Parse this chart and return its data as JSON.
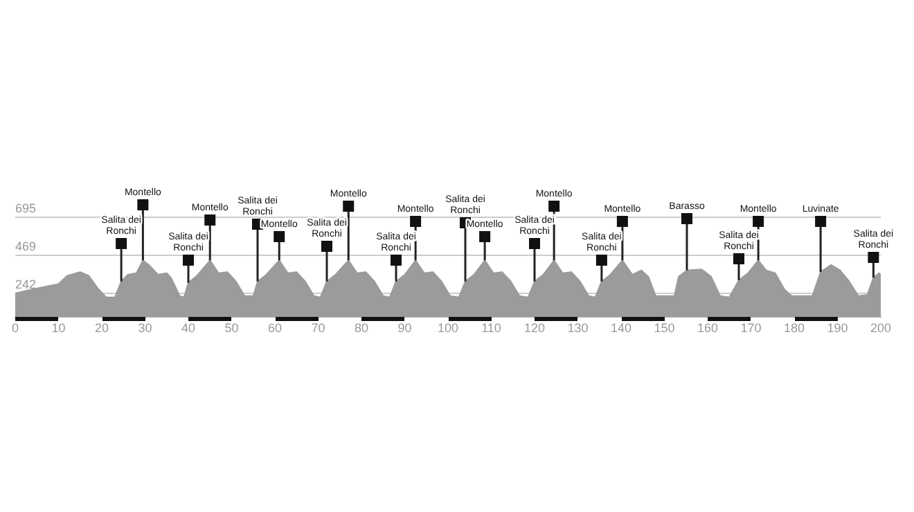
{
  "chart_data": {
    "type": "area",
    "color": "#9b9b9b",
    "x": [
      0,
      3,
      7,
      10,
      12,
      15,
      17,
      19,
      21,
      23,
      24.5,
      26,
      28,
      29.5,
      31,
      33,
      35,
      36,
      38,
      39,
      40,
      42,
      45,
      47,
      49,
      51,
      53,
      55,
      56,
      58,
      61,
      63,
      65,
      67,
      69,
      70.5,
      72,
      74,
      77,
      79,
      81,
      83,
      85,
      86.5,
      88,
      90,
      92.5,
      94.5,
      96.5,
      98.5,
      100.5,
      102.5,
      104,
      106,
      108.5,
      110.5,
      112.5,
      114.5,
      116.5,
      118.5,
      120,
      122,
      124.5,
      126.5,
      128.5,
      130.5,
      132.5,
      134,
      135.5,
      137.5,
      140.3,
      142.6,
      144.7,
      146.3,
      148,
      152.3,
      153.3,
      155.2,
      158.6,
      160.8,
      162.9,
      165,
      167.2,
      169.3,
      171.7,
      173.5,
      175.6,
      177.8,
      179.4,
      184.2,
      186.1,
      188.5,
      190.6,
      192.7,
      194.8,
      196.9,
      198.3,
      199.6,
      200
    ],
    "values": [
      242,
      260,
      282,
      297,
      347,
      369,
      347,
      274,
      218,
      218,
      313,
      353,
      362,
      438,
      408,
      353,
      362,
      335,
      226,
      218,
      305,
      347,
      438,
      362,
      369,
      313,
      226,
      226,
      313,
      353,
      438,
      362,
      369,
      313,
      226,
      218,
      313,
      353,
      438,
      362,
      369,
      313,
      226,
      218,
      313,
      353,
      438,
      362,
      369,
      313,
      226,
      218,
      313,
      353,
      438,
      362,
      369,
      313,
      226,
      218,
      313,
      353,
      438,
      362,
      369,
      313,
      226,
      218,
      313,
      353,
      438,
      353,
      379,
      341,
      226,
      226,
      341,
      379,
      385,
      341,
      226,
      218,
      320,
      362,
      438,
      379,
      362,
      263,
      226,
      226,
      369,
      411,
      379,
      313,
      226,
      232,
      335,
      362,
      353
    ],
    "xlim": [
      0,
      200
    ],
    "xticks": [
      0,
      10,
      20,
      30,
      40,
      50,
      60,
      70,
      80,
      90,
      100,
      110,
      120,
      130,
      140,
      150,
      160,
      170,
      180,
      190,
      200
    ],
    "ylim": [
      100,
      695
    ],
    "yticks": [
      242,
      469,
      695
    ],
    "grid": "y",
    "legend": false,
    "annotations": [
      {
        "text": "Salita dei Ronchi",
        "x": 24.5,
        "y": 313
      },
      {
        "text": "Montello",
        "x": 29.5,
        "y": 438
      },
      {
        "text": "Salita dei Ronchi",
        "x": 40,
        "y": 305
      },
      {
        "text": "Montello",
        "x": 45,
        "y": 438
      },
      {
        "text": "Salita dei Ronchi",
        "x": 56,
        "y": 313
      },
      {
        "text": "Montello",
        "x": 61,
        "y": 438
      },
      {
        "text": "Salita dei Ronchi",
        "x": 72,
        "y": 313
      },
      {
        "text": "Montello",
        "x": 77,
        "y": 438
      },
      {
        "text": "Salita dei Ronchi",
        "x": 88,
        "y": 313
      },
      {
        "text": "Montello",
        "x": 92.5,
        "y": 438
      },
      {
        "text": "Salita dei Ronchi",
        "x": 104,
        "y": 313
      },
      {
        "text": "Montello",
        "x": 108.5,
        "y": 438
      },
      {
        "text": "Salita dei Ronchi",
        "x": 120,
        "y": 313
      },
      {
        "text": "Montello",
        "x": 124.5,
        "y": 438
      },
      {
        "text": "Salita dei Ronchi",
        "x": 135.5,
        "y": 313
      },
      {
        "text": "Montello",
        "x": 140.3,
        "y": 438
      },
      {
        "text": "Barasso",
        "x": 155.2,
        "y": 379
      },
      {
        "text": "Salita dei Ronchi",
        "x": 167.2,
        "y": 320
      },
      {
        "text": "Montello",
        "x": 171.7,
        "y": 438
      },
      {
        "text": "Luvinate",
        "x": 186.1,
        "y": 369
      },
      {
        "text": "Salita dei Ronchi",
        "x": 198.3,
        "y": 335
      }
    ]
  }
}
